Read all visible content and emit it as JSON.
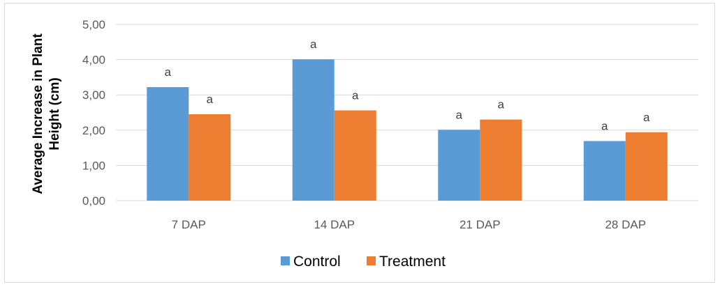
{
  "chart_data": {
    "type": "bar",
    "title": "",
    "xlabel": "",
    "ylabel": "Average Increase in Plant Height (cm)",
    "ylabel_lines": [
      "Average Increase in Plant",
      "Height (cm)"
    ],
    "categories": [
      "7 DAP",
      "14 DAP",
      "21 DAP",
      "28 DAP"
    ],
    "series": [
      {
        "name": "Control",
        "color": "#5b9bd5",
        "values": [
          3.22,
          4.01,
          2.01,
          1.69
        ],
        "labels": [
          "a",
          "a",
          "a",
          "a"
        ]
      },
      {
        "name": "Treatment",
        "color": "#ed7d31",
        "values": [
          2.45,
          2.56,
          2.3,
          1.94
        ],
        "labels": [
          "a",
          "a",
          "a",
          "a"
        ]
      }
    ],
    "ylim": [
      0,
      5
    ],
    "yticks": [
      0,
      1,
      2,
      3,
      4,
      5
    ],
    "ytick_labels": [
      "0,00",
      "1,00",
      "2,00",
      "3,00",
      "4,00",
      "5,00"
    ],
    "grid": true,
    "gridline_color": "#d9d9d9",
    "legend_position": "bottom"
  }
}
